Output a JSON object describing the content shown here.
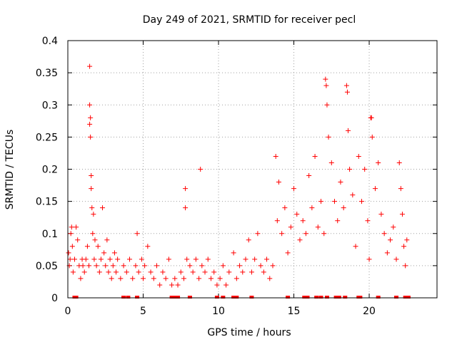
{
  "chart_data": {
    "type": "scatter",
    "title": "Day 249 of 2021, SRMTID for receiver pecl",
    "xlabel": "GPS time / hours",
    "ylabel": "SRMTID / TECUs",
    "xlim": [
      0,
      24.5
    ],
    "ylim": [
      0,
      0.4
    ],
    "grid": true,
    "marker": "+",
    "color": "#ff0000",
    "xticks": [
      0,
      5,
      10,
      15,
      20
    ],
    "xtick_labels": [
      "0",
      "5",
      "10",
      "15",
      "20"
    ],
    "yticks": [
      0,
      0.05,
      0.1,
      0.15,
      0.2,
      0.25,
      0.3,
      0.35,
      0.4
    ],
    "ytick_labels": [
      "0",
      "0.05",
      "0.1",
      "0.15",
      "0.2",
      "0.25",
      "0.3",
      "0.35",
      "0.4"
    ],
    "series": [
      {
        "name": "SRMTID",
        "points": [
          [
            0.05,
            0.07
          ],
          [
            0.1,
            0.05
          ],
          [
            0.15,
            0.06
          ],
          [
            0.2,
            0.1
          ],
          [
            0.25,
            0.11
          ],
          [
            0.3,
            0.08
          ],
          [
            0.35,
            0.04
          ],
          [
            0.45,
            0.06
          ],
          [
            0.55,
            0.11
          ],
          [
            0.65,
            0.09
          ],
          [
            0.75,
            0.05
          ],
          [
            0.85,
            0.03
          ],
          [
            0.95,
            0.06
          ],
          [
            1.0,
            0.05
          ],
          [
            1.1,
            0.04
          ],
          [
            1.2,
            0.06
          ],
          [
            1.3,
            0.08
          ],
          [
            1.4,
            0.05
          ],
          [
            1.45,
            0.36
          ],
          [
            1.45,
            0.3
          ],
          [
            1.45,
            0.27
          ],
          [
            1.5,
            0.28
          ],
          [
            1.5,
            0.25
          ],
          [
            1.55,
            0.19
          ],
          [
            1.55,
            0.17
          ],
          [
            1.6,
            0.14
          ],
          [
            1.65,
            0.1
          ],
          [
            1.7,
            0.13
          ],
          [
            1.75,
            0.06
          ],
          [
            1.8,
            0.09
          ],
          [
            1.9,
            0.05
          ],
          [
            2.0,
            0.08
          ],
          [
            2.1,
            0.04
          ],
          [
            2.2,
            0.06
          ],
          [
            2.3,
            0.14
          ],
          [
            2.4,
            0.07
          ],
          [
            2.5,
            0.05
          ],
          [
            2.6,
            0.09
          ],
          [
            2.7,
            0.04
          ],
          [
            2.8,
            0.06
          ],
          [
            2.9,
            0.03
          ],
          [
            3.0,
            0.05
          ],
          [
            3.1,
            0.07
          ],
          [
            3.2,
            0.04
          ],
          [
            3.3,
            0.06
          ],
          [
            3.5,
            0.03
          ],
          [
            3.7,
            0.05
          ],
          [
            3.9,
            0.04
          ],
          [
            4.1,
            0.06
          ],
          [
            4.3,
            0.03
          ],
          [
            4.5,
            0.05
          ],
          [
            4.6,
            0.1
          ],
          [
            4.7,
            0.04
          ],
          [
            4.9,
            0.06
          ],
          [
            5.0,
            0.03
          ],
          [
            5.1,
            0.05
          ],
          [
            5.3,
            0.08
          ],
          [
            5.5,
            0.04
          ],
          [
            5.7,
            0.03
          ],
          [
            5.9,
            0.05
          ],
          [
            6.1,
            0.02
          ],
          [
            6.3,
            0.04
          ],
          [
            6.5,
            0.03
          ],
          [
            6.7,
            0.06
          ],
          [
            6.9,
            0.02
          ],
          [
            7.1,
            0.03
          ],
          [
            7.3,
            0.02
          ],
          [
            7.5,
            0.04
          ],
          [
            7.7,
            0.03
          ],
          [
            7.8,
            0.17
          ],
          [
            7.8,
            0.14
          ],
          [
            7.9,
            0.06
          ],
          [
            8.1,
            0.05
          ],
          [
            8.3,
            0.04
          ],
          [
            8.5,
            0.06
          ],
          [
            8.7,
            0.03
          ],
          [
            8.8,
            0.2
          ],
          [
            8.9,
            0.05
          ],
          [
            9.1,
            0.04
          ],
          [
            9.3,
            0.06
          ],
          [
            9.5,
            0.03
          ],
          [
            9.7,
            0.04
          ],
          [
            9.9,
            0.02
          ],
          [
            10.1,
            0.03
          ],
          [
            10.3,
            0.05
          ],
          [
            10.5,
            0.02
          ],
          [
            10.7,
            0.04
          ],
          [
            11.0,
            0.07
          ],
          [
            11.2,
            0.03
          ],
          [
            11.4,
            0.05
          ],
          [
            11.6,
            0.04
          ],
          [
            11.8,
            0.06
          ],
          [
            12.0,
            0.09
          ],
          [
            12.2,
            0.04
          ],
          [
            12.4,
            0.06
          ],
          [
            12.6,
            0.1
          ],
          [
            12.8,
            0.05
          ],
          [
            13.0,
            0.04
          ],
          [
            13.2,
            0.06
          ],
          [
            13.4,
            0.03
          ],
          [
            13.6,
            0.05
          ],
          [
            13.8,
            0.22
          ],
          [
            13.9,
            0.12
          ],
          [
            14.0,
            0.18
          ],
          [
            14.2,
            0.1
          ],
          [
            14.4,
            0.14
          ],
          [
            14.6,
            0.07
          ],
          [
            14.8,
            0.11
          ],
          [
            15.0,
            0.17
          ],
          [
            15.2,
            0.13
          ],
          [
            15.4,
            0.09
          ],
          [
            15.6,
            0.12
          ],
          [
            15.8,
            0.1
          ],
          [
            16.0,
            0.19
          ],
          [
            16.2,
            0.14
          ],
          [
            16.4,
            0.22
          ],
          [
            16.6,
            0.11
          ],
          [
            16.8,
            0.15
          ],
          [
            17.0,
            0.1
          ],
          [
            17.1,
            0.34
          ],
          [
            17.15,
            0.33
          ],
          [
            17.2,
            0.3
          ],
          [
            17.3,
            0.25
          ],
          [
            17.5,
            0.21
          ],
          [
            17.7,
            0.15
          ],
          [
            17.9,
            0.12
          ],
          [
            18.1,
            0.18
          ],
          [
            18.3,
            0.14
          ],
          [
            18.5,
            0.33
          ],
          [
            18.55,
            0.32
          ],
          [
            18.6,
            0.26
          ],
          [
            18.7,
            0.2
          ],
          [
            18.9,
            0.16
          ],
          [
            19.1,
            0.08
          ],
          [
            19.3,
            0.22
          ],
          [
            19.5,
            0.15
          ],
          [
            19.7,
            0.2
          ],
          [
            19.9,
            0.12
          ],
          [
            20.0,
            0.06
          ],
          [
            20.1,
            0.28
          ],
          [
            20.15,
            0.28
          ],
          [
            20.2,
            0.25
          ],
          [
            20.4,
            0.17
          ],
          [
            20.6,
            0.21
          ],
          [
            20.8,
            0.13
          ],
          [
            21.0,
            0.1
          ],
          [
            21.2,
            0.07
          ],
          [
            21.4,
            0.09
          ],
          [
            21.6,
            0.11
          ],
          [
            21.8,
            0.06
          ],
          [
            22.0,
            0.21
          ],
          [
            22.1,
            0.17
          ],
          [
            22.2,
            0.13
          ],
          [
            22.3,
            0.08
          ],
          [
            22.4,
            0.05
          ],
          [
            22.5,
            0.09
          ]
        ]
      }
    ],
    "zero_markers": [
      0.45,
      0.55,
      3.7,
      4.0,
      4.6,
      6.9,
      7.1,
      7.3,
      8.1,
      9.9,
      10.3,
      11.0,
      11.2,
      12.2,
      14.6,
      15.7,
      15.9,
      16.5,
      16.8,
      17.2,
      17.8,
      18.0,
      18.4,
      19.3,
      19.4,
      20.6,
      21.8,
      22.4,
      22.6
    ]
  }
}
